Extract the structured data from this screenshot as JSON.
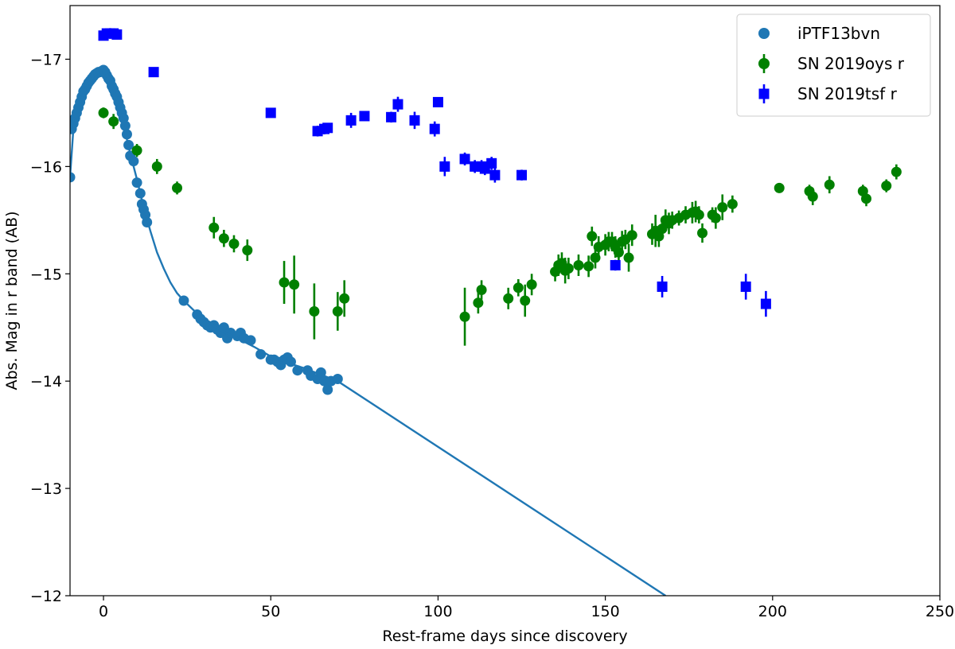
{
  "chart_data": {
    "type": "scatter",
    "title": "",
    "xlabel": "Rest-frame days since discovery",
    "ylabel": "Abs. Mag in r band (AB)",
    "xlim": [
      -10,
      250
    ],
    "ylim": [
      -12,
      -17.5
    ],
    "y_inverted": true,
    "xticks": [
      0,
      50,
      100,
      150,
      200,
      250
    ],
    "yticks": [
      -12,
      -13,
      -14,
      -15,
      -16,
      -17
    ],
    "x_tick_labels": [
      "0",
      "50",
      "100",
      "150",
      "200",
      "250"
    ],
    "y_tick_labels": [
      "−12",
      "−13",
      "−14",
      "−15",
      "−16",
      "−17"
    ],
    "grid": false,
    "legend_position": "top-right",
    "series": [
      {
        "name": "iPTF13bvn",
        "kind": "points",
        "marker": "circle",
        "color": "#1f77b4",
        "points": [
          [
            -10,
            -15.9
          ],
          [
            -9.5,
            -16.35
          ],
          [
            -9,
            -16.4
          ],
          [
            -8.5,
            -16.45
          ],
          [
            -8,
            -16.5
          ],
          [
            -7.5,
            -16.55
          ],
          [
            -7,
            -16.6
          ],
          [
            -6.5,
            -16.65
          ],
          [
            -6,
            -16.7
          ],
          [
            -5.5,
            -16.72
          ],
          [
            -5,
            -16.75
          ],
          [
            -4.5,
            -16.78
          ],
          [
            -4,
            -16.8
          ],
          [
            -3.5,
            -16.82
          ],
          [
            -3,
            -16.84
          ],
          [
            -2.5,
            -16.86
          ],
          [
            -2,
            -16.87
          ],
          [
            -1.5,
            -16.88
          ],
          [
            -1,
            -16.88
          ],
          [
            -0.5,
            -16.89
          ],
          [
            0,
            -16.9
          ],
          [
            0.5,
            -16.88
          ],
          [
            1,
            -16.85
          ],
          [
            1.5,
            -16.82
          ],
          [
            2,
            -16.8
          ],
          [
            2.5,
            -16.75
          ],
          [
            3,
            -16.72
          ],
          [
            3.5,
            -16.68
          ],
          [
            4,
            -16.65
          ],
          [
            4.5,
            -16.6
          ],
          [
            5,
            -16.55
          ],
          [
            5.5,
            -16.5
          ],
          [
            6,
            -16.45
          ],
          [
            6.5,
            -16.38
          ],
          [
            7,
            -16.3
          ],
          [
            7.5,
            -16.2
          ],
          [
            8,
            -16.1
          ],
          [
            9,
            -16.05
          ],
          [
            10,
            -15.85
          ],
          [
            11,
            -15.75
          ],
          [
            11.5,
            -15.65
          ],
          [
            12,
            -15.6
          ],
          [
            12.5,
            -15.55
          ],
          [
            13,
            -15.48
          ],
          [
            24,
            -14.75
          ],
          [
            28,
            -14.62
          ],
          [
            29,
            -14.58
          ],
          [
            30,
            -14.55
          ],
          [
            31,
            -14.52
          ],
          [
            32,
            -14.5
          ],
          [
            33,
            -14.52
          ],
          [
            34,
            -14.48
          ],
          [
            35,
            -14.45
          ],
          [
            36,
            -14.5
          ],
          [
            37,
            -14.4
          ],
          [
            38,
            -14.45
          ],
          [
            40,
            -14.42
          ],
          [
            41,
            -14.45
          ],
          [
            42,
            -14.4
          ],
          [
            44,
            -14.38
          ],
          [
            47,
            -14.25
          ],
          [
            50,
            -14.2
          ],
          [
            51,
            -14.2
          ],
          [
            52,
            -14.18
          ],
          [
            53,
            -14.15
          ],
          [
            54,
            -14.2
          ],
          [
            55,
            -14.22
          ],
          [
            56,
            -14.18
          ],
          [
            58,
            -14.1
          ],
          [
            61,
            -14.1
          ],
          [
            62,
            -14.05
          ],
          [
            64,
            -14.02
          ],
          [
            65,
            -14.08
          ],
          [
            66,
            -14.0
          ],
          [
            67,
            -13.92
          ],
          [
            68,
            -14.0
          ],
          [
            70,
            -14.02
          ]
        ]
      },
      {
        "name": "",
        "kind": "line",
        "color": "#1f77b4",
        "points": [
          [
            -10,
            -15.9
          ],
          [
            -9,
            -16.35
          ],
          [
            -7,
            -16.6
          ],
          [
            -5,
            -16.75
          ],
          [
            -3,
            -16.84
          ],
          [
            -1,
            -16.89
          ],
          [
            0,
            -16.9
          ],
          [
            1,
            -16.87
          ],
          [
            2,
            -16.8
          ],
          [
            3,
            -16.72
          ],
          [
            4,
            -16.63
          ],
          [
            5,
            -16.5
          ],
          [
            6,
            -16.38
          ],
          [
            7,
            -16.25
          ],
          [
            8,
            -16.12
          ],
          [
            10,
            -15.88
          ],
          [
            12,
            -15.62
          ],
          [
            14,
            -15.4
          ],
          [
            16,
            -15.2
          ],
          [
            18,
            -15.05
          ],
          [
            20,
            -14.92
          ],
          [
            22,
            -14.82
          ],
          [
            24,
            -14.75
          ],
          [
            28,
            -14.63
          ],
          [
            32,
            -14.53
          ],
          [
            36,
            -14.46
          ],
          [
            40,
            -14.4
          ],
          [
            45,
            -14.32
          ],
          [
            50,
            -14.23
          ],
          [
            55,
            -14.17
          ],
          [
            60,
            -14.12
          ],
          [
            65,
            -14.06
          ],
          [
            70,
            -14.0
          ],
          [
            168,
            -12.0
          ]
        ]
      },
      {
        "name": "SN 2019oys r",
        "kind": "errorbar",
        "marker": "circle",
        "color": "#008000",
        "points": [
          [
            0,
            -16.5,
            0.05
          ],
          [
            3,
            -16.42,
            0.07
          ],
          [
            10,
            -16.15,
            0.06
          ],
          [
            16,
            -16.0,
            0.07
          ],
          [
            22,
            -15.8,
            0.06
          ],
          [
            33,
            -15.43,
            0.1
          ],
          [
            36,
            -15.33,
            0.08
          ],
          [
            39,
            -15.28,
            0.08
          ],
          [
            43,
            -15.22,
            0.1
          ],
          [
            54,
            -14.92,
            0.2
          ],
          [
            57,
            -14.9,
            0.27
          ],
          [
            63,
            -14.65,
            0.26
          ],
          [
            70,
            -14.65,
            0.18
          ],
          [
            72,
            -14.77,
            0.17
          ],
          [
            108,
            -14.6,
            0.27
          ],
          [
            112,
            -14.73,
            0.1
          ],
          [
            113,
            -14.85,
            0.09
          ],
          [
            121,
            -14.77,
            0.1
          ],
          [
            124,
            -14.87,
            0.08
          ],
          [
            126,
            -14.75,
            0.15
          ],
          [
            128,
            -14.9,
            0.1
          ],
          [
            135,
            -15.02,
            0.09
          ],
          [
            136,
            -15.08,
            0.1
          ],
          [
            137,
            -15.1,
            0.1
          ],
          [
            138,
            -15.03,
            0.12
          ],
          [
            139,
            -15.05,
            0.1
          ],
          [
            142,
            -15.08,
            0.1
          ],
          [
            145,
            -15.07,
            0.1
          ],
          [
            146,
            -15.35,
            0.09
          ],
          [
            147,
            -15.15,
            0.1
          ],
          [
            148,
            -15.25,
            0.1
          ],
          [
            150,
            -15.27,
            0.1
          ],
          [
            151,
            -15.3,
            0.09
          ],
          [
            152,
            -15.3,
            0.09
          ],
          [
            153,
            -15.25,
            0.1
          ],
          [
            154,
            -15.2,
            0.09
          ],
          [
            155,
            -15.3,
            0.1
          ],
          [
            156,
            -15.32,
            0.09
          ],
          [
            157,
            -15.15,
            0.13
          ],
          [
            158,
            -15.36,
            0.1
          ],
          [
            164,
            -15.37,
            0.1
          ],
          [
            165,
            -15.4,
            0.15
          ],
          [
            166,
            -15.35,
            0.1
          ],
          [
            167,
            -15.42,
            0.1
          ],
          [
            168,
            -15.5,
            0.1
          ],
          [
            169,
            -15.47,
            0.1
          ],
          [
            170,
            -15.5,
            0.08
          ],
          [
            172,
            -15.52,
            0.07
          ],
          [
            174,
            -15.55,
            0.08
          ],
          [
            176,
            -15.57,
            0.1
          ],
          [
            177,
            -15.58,
            0.1
          ],
          [
            178,
            -15.55,
            0.08
          ],
          [
            179,
            -15.38,
            0.09
          ],
          [
            182,
            -15.55,
            0.07
          ],
          [
            183,
            -15.52,
            0.1
          ],
          [
            185,
            -15.62,
            0.12
          ],
          [
            188,
            -15.65,
            0.08
          ],
          [
            202,
            -15.8,
            0.04
          ],
          [
            211,
            -15.77,
            0.06
          ],
          [
            212,
            -15.72,
            0.08
          ],
          [
            217,
            -15.83,
            0.08
          ],
          [
            227,
            -15.77,
            0.06
          ],
          [
            228,
            -15.7,
            0.07
          ],
          [
            234,
            -15.82,
            0.06
          ],
          [
            237,
            -15.95,
            0.07
          ]
        ]
      },
      {
        "name": "SN 2019tsf r",
        "kind": "errorbar",
        "marker": "square",
        "color": "#0000ff",
        "points": [
          [
            0,
            -17.22,
            0.04
          ],
          [
            1,
            -17.24,
            0.04
          ],
          [
            2,
            -17.24,
            0.05
          ],
          [
            3,
            -17.24,
            0.04
          ],
          [
            4,
            -17.23,
            0.04
          ],
          [
            15,
            -16.88,
            0.03
          ],
          [
            50,
            -16.5,
            0.04
          ],
          [
            64,
            -16.33,
            0.05
          ],
          [
            66,
            -16.35,
            0.05
          ],
          [
            67,
            -16.36,
            0.04
          ],
          [
            74,
            -16.43,
            0.07
          ],
          [
            78,
            -16.47,
            0.04
          ],
          [
            86,
            -16.46,
            0.05
          ],
          [
            88,
            -16.58,
            0.07
          ],
          [
            93,
            -16.43,
            0.08
          ],
          [
            99,
            -16.35,
            0.07
          ],
          [
            100,
            -16.6,
            0.04
          ],
          [
            102,
            -16.0,
            0.09
          ],
          [
            108,
            -16.07,
            0.06
          ],
          [
            111,
            -16.0,
            0.06
          ],
          [
            113,
            -16.0,
            0.06
          ],
          [
            114,
            -15.98,
            0.06
          ],
          [
            116,
            -16.03,
            0.06
          ],
          [
            117,
            -15.92,
            0.07
          ],
          [
            125,
            -15.92,
            0.05
          ],
          [
            153,
            -15.08,
            0.05
          ],
          [
            167,
            -14.88,
            0.1
          ],
          [
            192,
            -14.88,
            0.12
          ],
          [
            198,
            -14.72,
            0.12
          ]
        ]
      }
    ]
  }
}
